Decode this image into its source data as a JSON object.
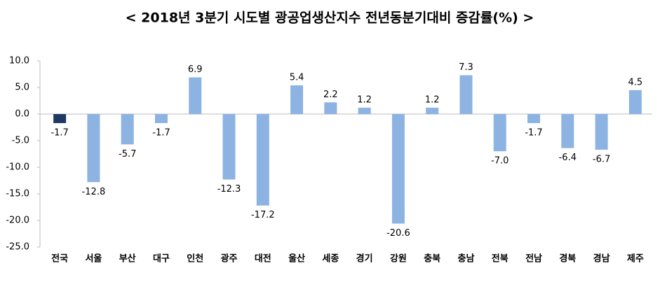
{
  "chart_data": {
    "type": "bar",
    "title": "< 2018년 3분기 시도별 광공업생산지수 전년동분기대비 증감률(%) >",
    "categories": [
      "전국",
      "서울",
      "부산",
      "대구",
      "인천",
      "광주",
      "대전",
      "울산",
      "세종",
      "경기",
      "강원",
      "충북",
      "충남",
      "전북",
      "전남",
      "경북",
      "경남",
      "제주"
    ],
    "values": [
      -1.7,
      -12.8,
      -5.7,
      -1.7,
      6.9,
      -12.3,
      -17.2,
      5.4,
      2.2,
      1.2,
      -20.6,
      1.2,
      7.3,
      -7.0,
      -1.7,
      -6.4,
      -6.7,
      4.5
    ],
    "value_labels": [
      "-1.7",
      "-12.8",
      "-5.7",
      "-1.7",
      "6.9",
      "-12.3",
      "-17.2",
      "5.4",
      "2.2",
      "1.2",
      "-20.6",
      "1.2",
      "7.3",
      "-7.0",
      "-1.7",
      "-6.4",
      "-6.7",
      "4.5"
    ],
    "colors": [
      "#1f3864",
      "#8db3e2",
      "#8db3e2",
      "#8db3e2",
      "#8db3e2",
      "#8db3e2",
      "#8db3e2",
      "#8db3e2",
      "#8db3e2",
      "#8db3e2",
      "#8db3e2",
      "#8db3e2",
      "#8db3e2",
      "#8db3e2",
      "#8db3e2",
      "#8db3e2",
      "#8db3e2",
      "#8db3e2"
    ],
    "ylim": [
      -25,
      10
    ],
    "yticks": [
      {
        "value": -25,
        "label": "-25.0"
      },
      {
        "value": -20,
        "label": "-20.0"
      },
      {
        "value": -15,
        "label": "-15.0"
      },
      {
        "value": -10,
        "label": "-10.0"
      },
      {
        "value": -5,
        "label": "-5.0"
      },
      {
        "value": 0,
        "label": "0.0"
      },
      {
        "value": 5,
        "label": "5.0"
      },
      {
        "value": 10,
        "label": "10.0"
      }
    ],
    "grid": false
  }
}
